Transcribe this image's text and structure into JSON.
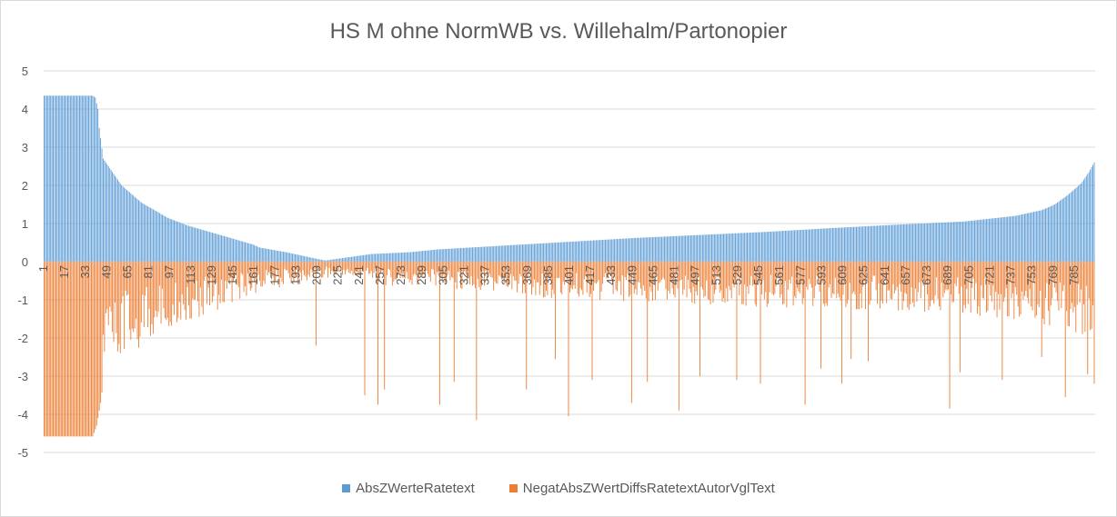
{
  "chart_data": {
    "type": "bar",
    "title": "HS M ohne NormWB vs. Willehalm/Partonopier",
    "xlabel": "",
    "ylabel": "",
    "ylim": [
      -5,
      5
    ],
    "yticks": [
      "5",
      "4",
      "3",
      "2",
      "1",
      "0",
      "-1",
      "-2",
      "-3",
      "-4",
      "-5"
    ],
    "x_count": 800,
    "xticks": [
      "1",
      "17",
      "33",
      "49",
      "65",
      "81",
      "97",
      "113",
      "129",
      "145",
      "161",
      "177",
      "193",
      "209",
      "225",
      "241",
      "257",
      "273",
      "289",
      "305",
      "321",
      "337",
      "353",
      "369",
      "385",
      "401",
      "417",
      "433",
      "449",
      "465",
      "481",
      "497",
      "513",
      "529",
      "545",
      "561",
      "577",
      "593",
      "609",
      "625",
      "641",
      "657",
      "673",
      "689",
      "705",
      "721",
      "737",
      "753",
      "769",
      "785"
    ],
    "legend_position": "bottom",
    "grid": true,
    "series": [
      {
        "name": "AbsZWerteRatetext",
        "color": "#5b9bd5",
        "profile": [
          [
            1,
            4.35
          ],
          [
            38,
            4.35
          ],
          [
            40,
            4.3
          ],
          [
            42,
            4.0
          ],
          [
            43,
            3.5
          ],
          [
            46,
            2.7
          ],
          [
            50,
            2.5
          ],
          [
            60,
            2.0
          ],
          [
            75,
            1.55
          ],
          [
            95,
            1.15
          ],
          [
            110,
            0.95
          ],
          [
            130,
            0.75
          ],
          [
            150,
            0.55
          ],
          [
            160,
            0.45
          ],
          [
            165,
            0.37
          ],
          [
            185,
            0.25
          ],
          [
            205,
            0.1
          ],
          [
            215,
            0.03
          ],
          [
            225,
            0.08
          ],
          [
            250,
            0.2
          ],
          [
            280,
            0.25
          ],
          [
            300,
            0.32
          ],
          [
            350,
            0.42
          ],
          [
            400,
            0.52
          ],
          [
            450,
            0.62
          ],
          [
            500,
            0.7
          ],
          [
            550,
            0.78
          ],
          [
            600,
            0.88
          ],
          [
            650,
            0.97
          ],
          [
            700,
            1.05
          ],
          [
            740,
            1.2
          ],
          [
            760,
            1.35
          ],
          [
            770,
            1.5
          ],
          [
            780,
            1.75
          ],
          [
            790,
            2.05
          ],
          [
            796,
            2.35
          ],
          [
            800,
            2.6
          ]
        ]
      },
      {
        "name": "NegatAbsZWertDiffsRatetextAutorVglText",
        "color": "#ed7d31",
        "base_profile": [
          [
            1,
            -4.58
          ],
          [
            38,
            -4.58
          ],
          [
            41,
            -4.3
          ],
          [
            44,
            -3.7
          ],
          [
            47,
            -2.9
          ],
          [
            55,
            -2.3
          ],
          [
            70,
            -1.9
          ],
          [
            90,
            -1.5
          ],
          [
            110,
            -1.25
          ],
          [
            140,
            -0.95
          ],
          [
            170,
            -0.6
          ],
          [
            200,
            -0.45
          ],
          [
            230,
            -0.3
          ],
          [
            260,
            -0.5
          ],
          [
            300,
            -0.55
          ],
          [
            350,
            -0.7
          ],
          [
            400,
            -0.8
          ],
          [
            450,
            -0.85
          ],
          [
            500,
            -0.9
          ],
          [
            550,
            -0.95
          ],
          [
            600,
            -1.0
          ],
          [
            650,
            -1.05
          ],
          [
            700,
            -1.15
          ],
          [
            750,
            -1.25
          ],
          [
            780,
            -1.45
          ],
          [
            800,
            -1.6
          ]
        ],
        "spikes": [
          [
            208,
            -2.2
          ],
          [
            245,
            -3.5
          ],
          [
            255,
            -3.75
          ],
          [
            260,
            -3.35
          ],
          [
            302,
            -3.75
          ],
          [
            313,
            -3.15
          ],
          [
            330,
            -4.15
          ],
          [
            368,
            -3.35
          ],
          [
            390,
            -2.55
          ],
          [
            400,
            -4.05
          ],
          [
            418,
            -3.1
          ],
          [
            448,
            -3.7
          ],
          [
            460,
            -3.15
          ],
          [
            484,
            -3.9
          ],
          [
            500,
            -3.0
          ],
          [
            528,
            -3.1
          ],
          [
            546,
            -3.2
          ],
          [
            580,
            -3.75
          ],
          [
            592,
            -2.8
          ],
          [
            608,
            -3.2
          ],
          [
            615,
            -2.55
          ],
          [
            628,
            -2.6
          ],
          [
            690,
            -3.85
          ],
          [
            698,
            -2.9
          ],
          [
            730,
            -3.1
          ],
          [
            760,
            -2.5
          ],
          [
            778,
            -3.55
          ],
          [
            795,
            -2.95
          ],
          [
            800,
            -3.2
          ]
        ]
      }
    ]
  }
}
